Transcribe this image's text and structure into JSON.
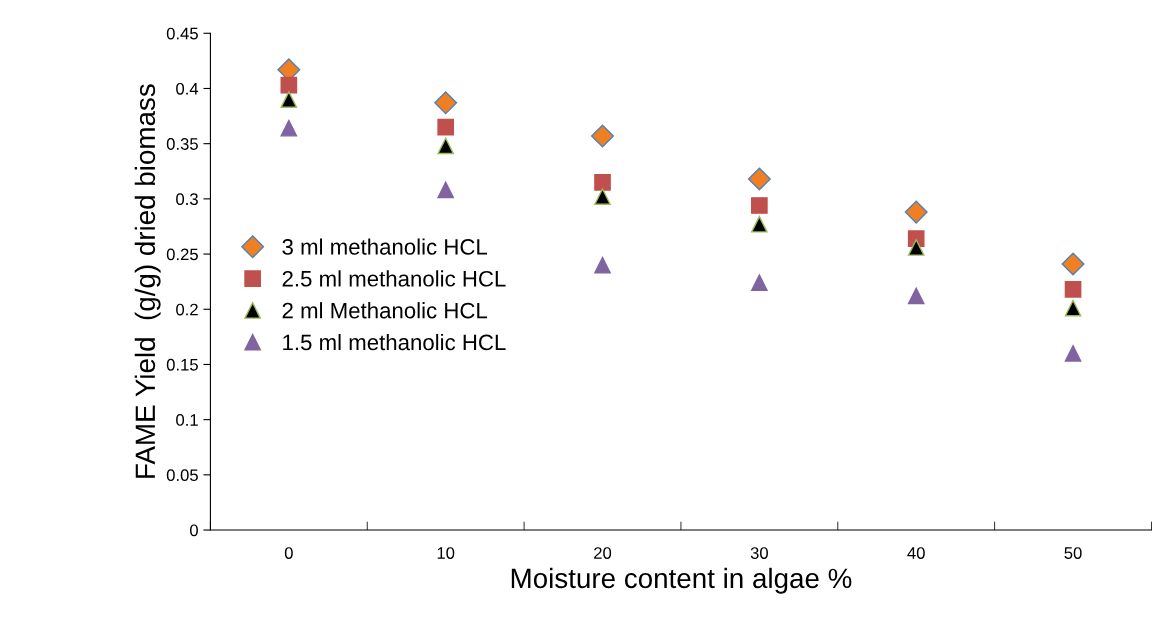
{
  "chart_data": {
    "type": "scatter",
    "xlabel": "Moisture content in algae %",
    "ylabel": "FAME Yield  (g/g) dried biomass",
    "categories": [
      "0",
      "10",
      "20",
      "30",
      "40",
      "50"
    ],
    "ylim": [
      0,
      0.45
    ],
    "yticks": [
      0,
      0.05,
      0.1,
      0.15,
      0.2,
      0.25,
      0.3,
      0.35,
      0.4,
      0.45
    ],
    "grid": false,
    "legend": "left",
    "series": [
      {
        "name": "3 ml methanolic HCL",
        "color": "#f07f22",
        "marker": "diamond",
        "values": [
          0.417,
          0.387,
          0.357,
          0.318,
          0.288,
          0.241
        ]
      },
      {
        "name": "2.5 ml methanolic HCL",
        "color": "#c0504d",
        "marker": "square",
        "values": [
          0.403,
          0.365,
          0.315,
          0.294,
          0.264,
          0.218
        ]
      },
      {
        "name": "2 ml Methanolic HCL",
        "color": "#000000",
        "marker": "triangle",
        "values": [
          0.39,
          0.348,
          0.302,
          0.277,
          0.256,
          0.201
        ]
      },
      {
        "name": "1.5 ml methanolic HCL",
        "color": "#8064a2",
        "marker": "triangle",
        "values": [
          0.364,
          0.308,
          0.24,
          0.224,
          0.212,
          0.16
        ]
      }
    ]
  }
}
